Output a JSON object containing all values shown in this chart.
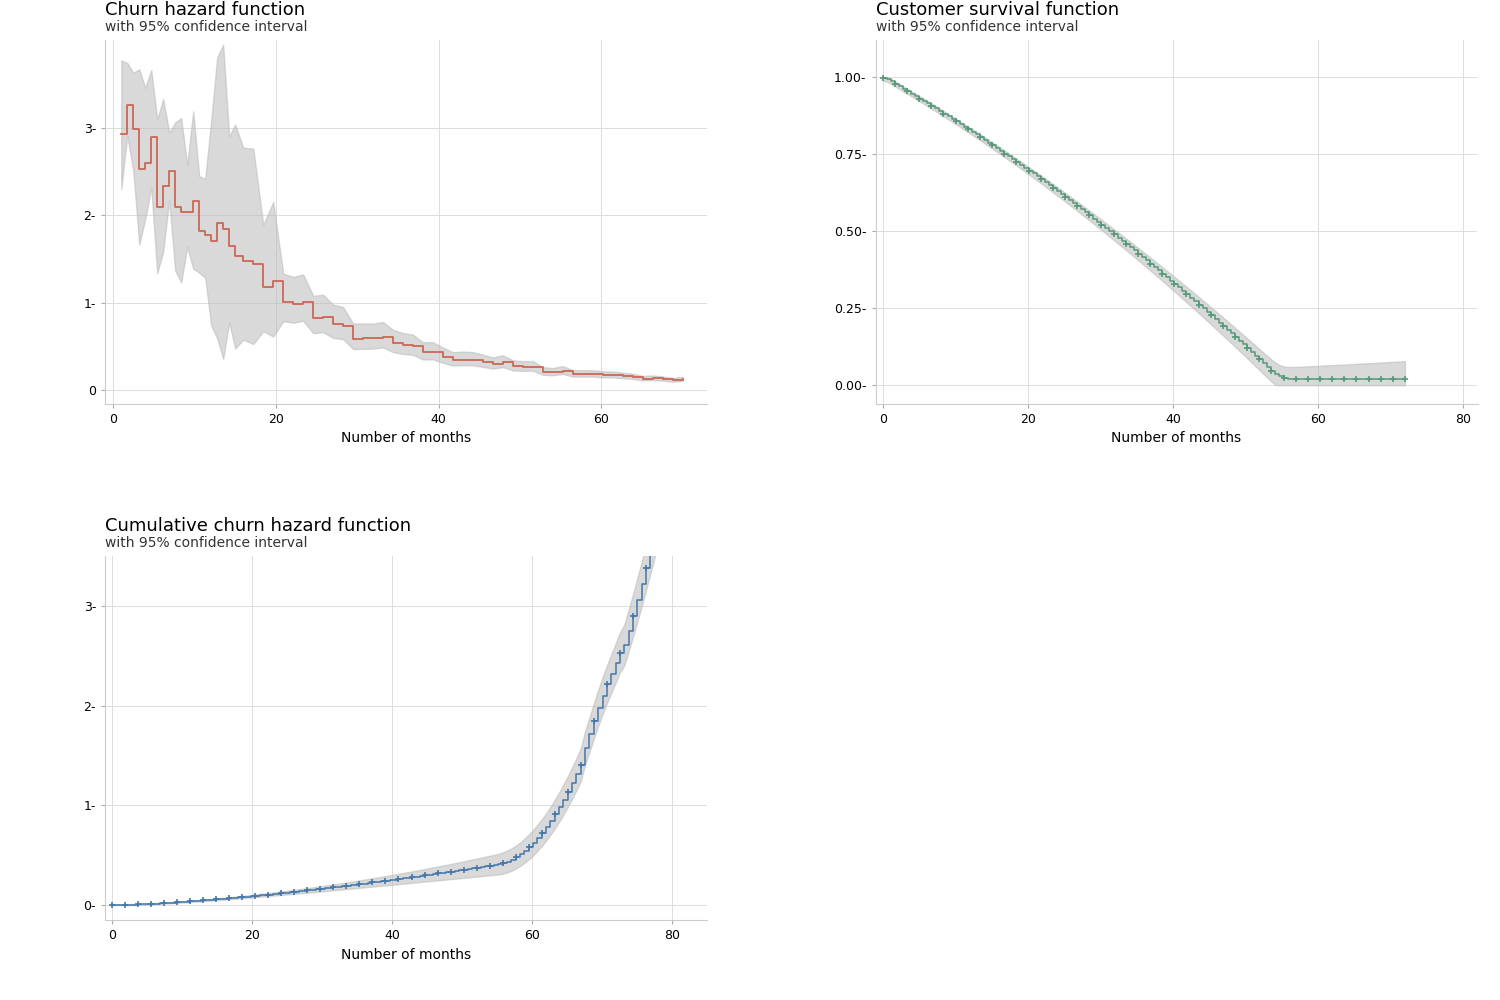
{
  "title1": "Churn hazard function",
  "subtitle1": "with 95% confidence interval",
  "title2": "Customer survival function",
  "subtitle2": "with 95% confidence interval",
  "title3": "Cumulative churn hazard function",
  "subtitle3": "with 95% confidence interval",
  "xlabel": "Number of months",
  "color_hazard": "#CC6655",
  "color_survival": "#55997A",
  "color_cumhazard": "#4477AA",
  "color_ci": "#BBBBBB",
  "bg_color": "#FFFFFF",
  "grid_color": "#DDDDDD",
  "title_fontsize": 13,
  "subtitle_fontsize": 10,
  "axis_fontsize": 10,
  "tick_fontsize": 9
}
